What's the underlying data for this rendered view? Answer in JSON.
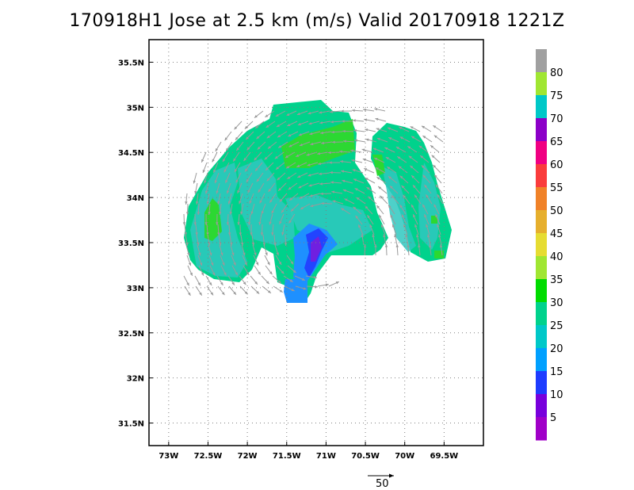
{
  "title": "170918H1 Jose at 2.5 km (m/s) Valid 20170918 1221Z",
  "map": {
    "lat_labels": [
      "35.5N",
      "35N",
      "34.5N",
      "34N",
      "33.5N",
      "33N",
      "32.5N",
      "32N",
      "31.5N"
    ],
    "lon_labels": [
      "73W",
      "72.5W",
      "72W",
      "71.5W",
      "71W",
      "70.5W",
      "70W",
      "69.5W"
    ],
    "lat_range": [
      31.25,
      35.75
    ],
    "lon_range": [
      -73.25,
      -69.0
    ],
    "gridlines": "dotted",
    "background": "#ffffff"
  },
  "colorbar": {
    "labels": [
      "5",
      "10",
      "15",
      "20",
      "25",
      "30",
      "35",
      "40",
      "45",
      "50",
      "55",
      "60",
      "65",
      "70",
      "75",
      "80"
    ],
    "colors": [
      "#a000c8",
      "#7800dc",
      "#1e3cff",
      "#00a0ff",
      "#00c8c8",
      "#00d28c",
      "#00dc00",
      "#a0e632",
      "#e6dc32",
      "#e6af2d",
      "#f08228",
      "#fa3c3c",
      "#f00082",
      "#8c00c8",
      "#00c8c8",
      "#a0e632",
      "#a0a0a0"
    ]
  },
  "reference_vector": {
    "label": "50"
  }
}
